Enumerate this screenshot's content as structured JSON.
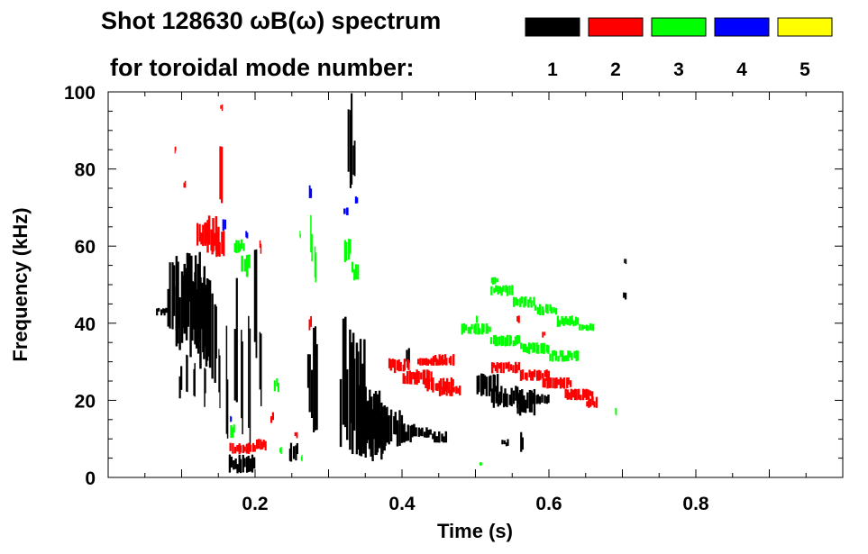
{
  "chart_data": {
    "type": "spectrogram",
    "title_line1": "Shot 128630 ωB(ω) spectrum",
    "title_line2": "for toroidal mode number:",
    "xlabel": "Time (s)",
    "ylabel": "Frequency (kHz)",
    "xlim": [
      0.0,
      1.0
    ],
    "ylim": [
      0,
      100
    ],
    "xticks": [
      {
        "value": 0.2,
        "label": "0.2"
      },
      {
        "value": 0.4,
        "label": "0.4"
      },
      {
        "value": 0.6,
        "label": "0.6"
      },
      {
        "value": 0.8,
        "label": "0.8"
      }
    ],
    "yticks": [
      {
        "value": 0,
        "label": "0"
      },
      {
        "value": 20,
        "label": "20"
      },
      {
        "value": 40,
        "label": "40"
      },
      {
        "value": 60,
        "label": "60"
      },
      {
        "value": 80,
        "label": "80"
      },
      {
        "value": 100,
        "label": "100"
      }
    ],
    "legend": [
      {
        "mode": "1",
        "color": "#000000"
      },
      {
        "mode": "2",
        "color": "#ff0000"
      },
      {
        "mode": "3",
        "color": "#00ff00"
      },
      {
        "mode": "4",
        "color": "#0000ff"
      },
      {
        "mode": "5",
        "color": "#ffff00"
      }
    ],
    "series": [
      {
        "mode": 1,
        "name": "n=1",
        "color": "#000000",
        "blobs": [
          [
            0.065,
            0.08,
            42,
            44
          ],
          [
            0.08,
            0.095,
            38,
            56
          ],
          [
            0.09,
            0.11,
            33,
            58
          ],
          [
            0.1,
            0.125,
            35,
            60
          ],
          [
            0.11,
            0.135,
            30,
            55
          ],
          [
            0.12,
            0.14,
            28,
            52
          ],
          [
            0.095,
            0.1,
            20,
            30
          ],
          [
            0.105,
            0.108,
            22,
            34
          ],
          [
            0.115,
            0.118,
            20,
            32
          ],
          [
            0.13,
            0.133,
            18,
            30
          ],
          [
            0.14,
            0.148,
            22,
            48
          ],
          [
            0.15,
            0.152,
            14,
            36
          ],
          [
            0.16,
            0.163,
            10,
            40
          ],
          [
            0.17,
            0.175,
            15,
            55
          ],
          [
            0.18,
            0.183,
            10,
            40
          ],
          [
            0.19,
            0.193,
            8,
            42
          ],
          [
            0.198,
            0.202,
            30,
            60
          ],
          [
            0.205,
            0.208,
            16,
            40
          ],
          [
            0.163,
            0.2,
            1,
            6
          ],
          [
            0.245,
            0.258,
            4,
            9
          ],
          [
            0.27,
            0.278,
            14,
            32
          ],
          [
            0.278,
            0.285,
            10,
            40
          ],
          [
            0.315,
            0.335,
            5,
            42
          ],
          [
            0.33,
            0.35,
            6,
            36
          ],
          [
            0.34,
            0.37,
            5,
            24
          ],
          [
            0.35,
            0.38,
            4,
            20
          ],
          [
            0.37,
            0.4,
            8,
            18
          ],
          [
            0.395,
            0.42,
            9,
            14
          ],
          [
            0.42,
            0.44,
            10,
            13
          ],
          [
            0.44,
            0.46,
            9,
            12
          ],
          [
            0.325,
            0.332,
            70,
            100
          ],
          [
            0.332,
            0.336,
            78,
            92
          ],
          [
            0.405,
            0.41,
            28,
            34
          ],
          [
            0.5,
            0.53,
            21,
            27
          ],
          [
            0.52,
            0.56,
            18,
            24
          ],
          [
            0.555,
            0.58,
            16,
            23
          ],
          [
            0.575,
            0.6,
            19,
            22
          ],
          [
            0.535,
            0.545,
            8,
            10
          ],
          [
            0.56,
            0.565,
            5,
            12
          ],
          [
            0.7,
            0.705,
            46,
            48
          ],
          [
            0.702,
            0.705,
            55,
            57
          ]
        ]
      },
      {
        "mode": 2,
        "name": "n=2",
        "color": "#ff0000",
        "blobs": [
          [
            0.12,
            0.135,
            60,
            66
          ],
          [
            0.13,
            0.15,
            58,
            68
          ],
          [
            0.14,
            0.158,
            57,
            64
          ],
          [
            0.15,
            0.155,
            70,
            86
          ],
          [
            0.152,
            0.155,
            95,
            97
          ],
          [
            0.09,
            0.092,
            84,
            86
          ],
          [
            0.102,
            0.105,
            75,
            77
          ],
          [
            0.165,
            0.2,
            6,
            9
          ],
          [
            0.2,
            0.215,
            7,
            10
          ],
          [
            0.205,
            0.208,
            58,
            62
          ],
          [
            0.22,
            0.225,
            14,
            17
          ],
          [
            0.253,
            0.257,
            10,
            12
          ],
          [
            0.273,
            0.277,
            38,
            42
          ],
          [
            0.38,
            0.41,
            27,
            31
          ],
          [
            0.4,
            0.44,
            24,
            28
          ],
          [
            0.43,
            0.47,
            22,
            26
          ],
          [
            0.45,
            0.48,
            21,
            24
          ],
          [
            0.42,
            0.46,
            29,
            31
          ],
          [
            0.44,
            0.47,
            29,
            32
          ],
          [
            0.52,
            0.56,
            27,
            30
          ],
          [
            0.56,
            0.6,
            25,
            28
          ],
          [
            0.59,
            0.63,
            23,
            26
          ],
          [
            0.62,
            0.66,
            20,
            23
          ],
          [
            0.65,
            0.665,
            18,
            21
          ],
          [
            0.555,
            0.56,
            40,
            42
          ],
          [
            0.59,
            0.594,
            36,
            38
          ]
        ]
      },
      {
        "mode": 3,
        "name": "n=3",
        "color": "#00ff00",
        "blobs": [
          [
            0.17,
            0.185,
            58,
            62
          ],
          [
            0.18,
            0.192,
            52,
            58
          ],
          [
            0.26,
            0.262,
            62,
            64
          ],
          [
            0.275,
            0.278,
            55,
            70
          ],
          [
            0.28,
            0.283,
            50,
            60
          ],
          [
            0.32,
            0.33,
            55,
            62
          ],
          [
            0.33,
            0.34,
            50,
            56
          ],
          [
            0.225,
            0.232,
            22,
            26
          ],
          [
            0.233,
            0.236,
            6,
            8
          ],
          [
            0.262,
            0.264,
            4,
            6
          ],
          [
            0.165,
            0.172,
            10,
            14
          ],
          [
            0.48,
            0.52,
            37,
            40
          ],
          [
            0.52,
            0.56,
            34,
            37
          ],
          [
            0.56,
            0.6,
            32,
            35
          ],
          [
            0.6,
            0.64,
            30,
            33
          ],
          [
            0.52,
            0.55,
            47,
            50
          ],
          [
            0.55,
            0.58,
            44,
            47
          ],
          [
            0.58,
            0.61,
            42,
            45
          ],
          [
            0.61,
            0.64,
            39,
            42
          ],
          [
            0.64,
            0.66,
            38,
            40
          ],
          [
            0.5,
            0.503,
            40,
            42
          ],
          [
            0.505,
            0.508,
            3,
            4
          ],
          [
            0.69,
            0.692,
            16,
            18
          ],
          [
            0.52,
            0.53,
            50,
            52
          ]
        ]
      },
      {
        "mode": 4,
        "name": "n=4",
        "color": "#0000ff",
        "blobs": [
          [
            0.155,
            0.16,
            64,
            67
          ],
          [
            0.186,
            0.19,
            62,
            64
          ],
          [
            0.273,
            0.277,
            72,
            76
          ],
          [
            0.32,
            0.326,
            68,
            70
          ],
          [
            0.335,
            0.34,
            71,
            73
          ],
          [
            0.165,
            0.168,
            14,
            16
          ]
        ]
      },
      {
        "mode": 5,
        "name": "n=5",
        "color": "#ffff00",
        "blobs": []
      }
    ]
  }
}
